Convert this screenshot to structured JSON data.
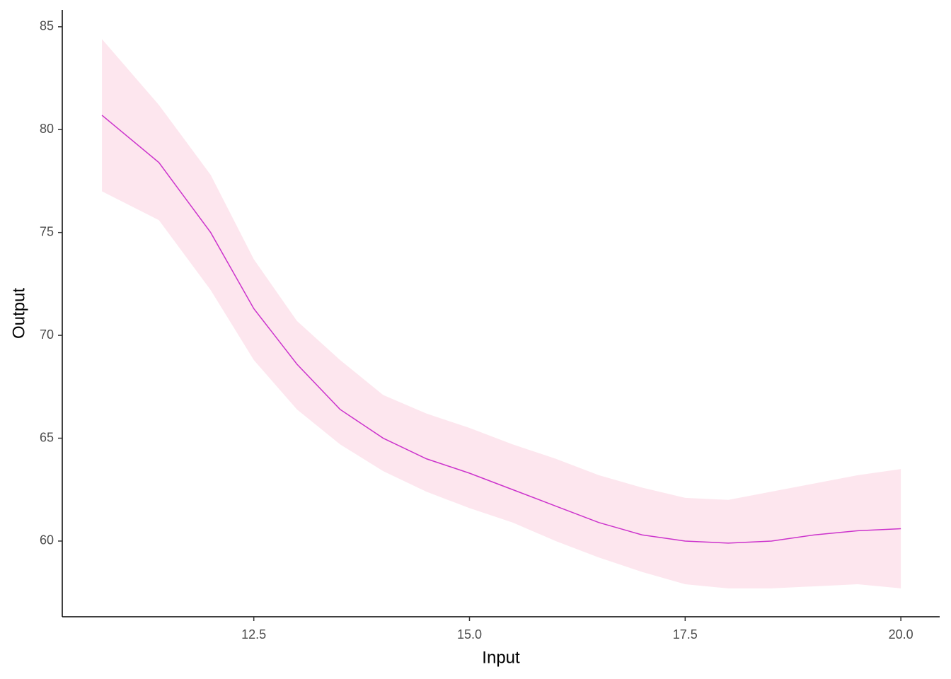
{
  "chart_data": {
    "type": "line",
    "x_label": "Input",
    "y_label": "Output",
    "x": [
      10.74,
      11.4,
      12.0,
      12.5,
      13.0,
      13.5,
      14.0,
      14.5,
      15.0,
      15.5,
      16.0,
      16.5,
      17.0,
      17.5,
      18.0,
      18.5,
      19.0,
      19.5,
      20.0
    ],
    "series": [
      {
        "color": "#cc33cc",
        "values": [
          80.7,
          78.4,
          75.0,
          71.3,
          68.6,
          66.4,
          65.0,
          64.0,
          63.3,
          62.5,
          61.7,
          60.9,
          60.3,
          60.0,
          59.9,
          60.0,
          60.3,
          60.5,
          60.6
        ]
      }
    ],
    "band": {
      "color": "#fde6ee",
      "lower": [
        77.0,
        75.6,
        72.2,
        68.8,
        66.4,
        64.7,
        63.4,
        62.4,
        61.6,
        60.9,
        60.0,
        59.2,
        58.5,
        57.9,
        57.7,
        57.7,
        57.8,
        57.9,
        57.7
      ],
      "upper": [
        84.4,
        81.2,
        77.8,
        73.7,
        70.7,
        68.8,
        67.1,
        66.2,
        65.5,
        64.7,
        64.0,
        63.2,
        62.6,
        62.1,
        62.0,
        62.4,
        62.8,
        63.2,
        63.5
      ]
    },
    "xlim": [
      10.28,
      20.45
    ],
    "ylim": [
      56.32,
      85.82
    ],
    "xticks": [
      12.5,
      {
        "value": 15,
        "label": "15.0"
      },
      17.5,
      {
        "value": 20,
        "label": "20.0"
      }
    ],
    "yticks": [
      60,
      65,
      70,
      75,
      80,
      85
    ],
    "grid": false
  }
}
